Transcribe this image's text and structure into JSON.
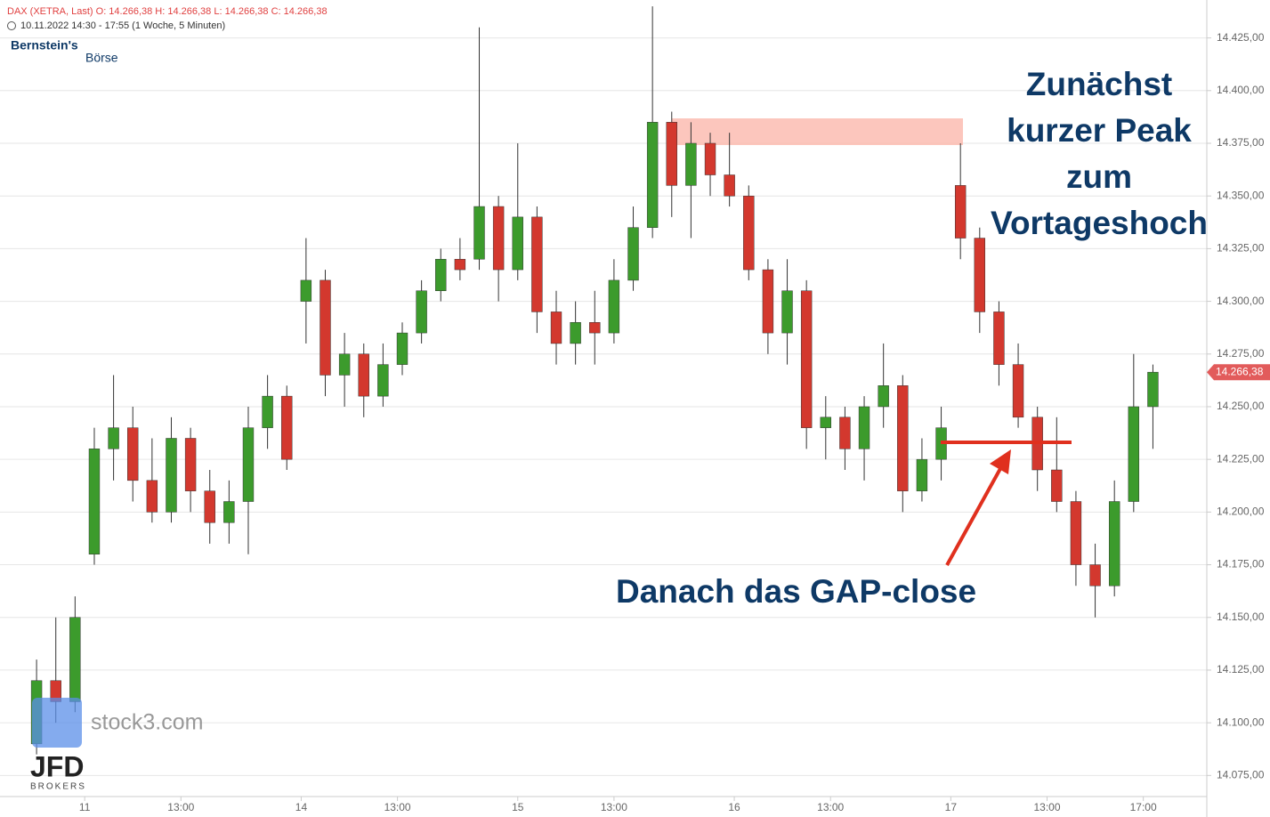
{
  "header": {
    "line1": "DAX (XETRA, Last)  O: 14.266,38  H: 14.266,38  L: 14.266,38  C: 14.266,38",
    "line2": "10.11.2022 14:30 - 17:55  (1 Woche, 5 Minuten)"
  },
  "logos": {
    "brand": "Bernstein's",
    "brand2": "Börse",
    "watermark": "stock3.com",
    "broker": "JFD",
    "broker2": "BROKERS"
  },
  "chart_data": {
    "type": "candlestick",
    "x": [
      -2.5,
      -1.5,
      -0.5,
      0.5,
      1.5,
      2.5,
      3.5,
      4.5,
      5.5,
      6.5,
      7.5,
      8.5,
      9.5,
      10.5,
      11.5,
      12.5,
      13.5,
      14.5,
      15.5,
      16.5,
      17.5,
      18.5,
      19.5,
      20.5,
      21.5,
      22.5,
      23.5,
      24.5,
      25.5,
      26.5,
      27.5,
      28.5,
      29.5,
      30.5,
      31.5,
      32.5,
      33.5,
      34.5,
      35.5,
      36.5,
      37.5,
      38.5,
      39.5,
      40.5,
      41.5,
      42.5,
      43.5,
      44.5,
      45.5,
      46.5,
      47.5,
      48.5,
      49.5,
      50.5,
      51.5,
      52.5,
      53.5,
      54.5,
      55.5
    ],
    "open": [
      14090,
      14120,
      14110,
      14180,
      14230,
      14240,
      14215,
      14200,
      14235,
      14210,
      14195,
      14205,
      14240,
      14255,
      14300,
      14310,
      14265,
      14275,
      14255,
      14270,
      14285,
      14305,
      14320,
      14320,
      14345,
      14315,
      14340,
      14295,
      14280,
      14290,
      14285,
      14310,
      14335,
      14385,
      14355,
      14375,
      14360,
      14350,
      14315,
      14285,
      14305,
      14240,
      14245,
      14230,
      14250,
      14260,
      14210,
      14225,
      14355,
      14330,
      14295,
      14270,
      14245,
      14220,
      14205,
      14175,
      14165,
      14205,
      14250
    ],
    "high": [
      14130,
      14150,
      14160,
      14240,
      14265,
      14250,
      14235,
      14245,
      14240,
      14220,
      14215,
      14250,
      14265,
      14260,
      14330,
      14315,
      14285,
      14280,
      14280,
      14290,
      14310,
      14325,
      14330,
      14430,
      14350,
      14375,
      14345,
      14305,
      14300,
      14305,
      14320,
      14345,
      14440,
      14390,
      14385,
      14380,
      14380,
      14355,
      14320,
      14320,
      14310,
      14255,
      14250,
      14255,
      14280,
      14265,
      14235,
      14250,
      14375,
      14335,
      14300,
      14280,
      14250,
      14245,
      14210,
      14185,
      14215,
      14275,
      14270
    ],
    "low": [
      14085,
      14100,
      14105,
      14175,
      14215,
      14205,
      14195,
      14195,
      14200,
      14185,
      14185,
      14180,
      14230,
      14220,
      14280,
      14255,
      14250,
      14245,
      14250,
      14265,
      14280,
      14300,
      14310,
      14315,
      14300,
      14310,
      14285,
      14270,
      14270,
      14270,
      14280,
      14305,
      14330,
      14340,
      14330,
      14350,
      14345,
      14310,
      14275,
      14270,
      14230,
      14225,
      14220,
      14215,
      14240,
      14200,
      14205,
      14215,
      14320,
      14285,
      14260,
      14240,
      14210,
      14200,
      14165,
      14150,
      14160,
      14200,
      14230
    ],
    "close": [
      14120,
      14110,
      14150,
      14230,
      14240,
      14215,
      14200,
      14235,
      14210,
      14195,
      14205,
      14240,
      14255,
      14225,
      14310,
      14265,
      14275,
      14255,
      14270,
      14285,
      14305,
      14320,
      14315,
      14345,
      14315,
      14340,
      14295,
      14280,
      14290,
      14285,
      14310,
      14335,
      14385,
      14355,
      14375,
      14360,
      14350,
      14315,
      14285,
      14305,
      14240,
      14245,
      14230,
      14250,
      14260,
      14210,
      14225,
      14240,
      14330,
      14295,
      14270,
      14245,
      14220,
      14205,
      14175,
      14165,
      14205,
      14250,
      14266.38
    ],
    "up_color": "#3c9b2c",
    "down_color": "#d3382e",
    "last_price": {
      "value": 14266.38,
      "label": "14.266,38"
    },
    "xlim": [
      -4.4,
      58.3
    ],
    "ylim": [
      14065,
      14443
    ],
    "xticks": [
      {
        "value": 0,
        "label": "11"
      },
      {
        "value": 5,
        "label": "13:00"
      },
      {
        "value": 11.25,
        "label": "14"
      },
      {
        "value": 16.25,
        "label": "13:00"
      },
      {
        "value": 22.5,
        "label": "15"
      },
      {
        "value": 27.5,
        "label": "13:00"
      },
      {
        "value": 33.75,
        "label": "16"
      },
      {
        "value": 38.75,
        "label": "13:00"
      },
      {
        "value": 45,
        "label": "17"
      },
      {
        "value": 50,
        "label": "13:00"
      },
      {
        "value": 55,
        "label": "17:00"
      }
    ],
    "yticks": [
      {
        "value": 14075,
        "label": "14.075,00"
      },
      {
        "value": 14100,
        "label": "14.100,00"
      },
      {
        "value": 14125,
        "label": "14.125,00"
      },
      {
        "value": 14150,
        "label": "14.150,00"
      },
      {
        "value": 14175,
        "label": "14.175,00"
      },
      {
        "value": 14200,
        "label": "14.200,00"
      },
      {
        "value": 14225,
        "label": "14.225,00"
      },
      {
        "value": 14250,
        "label": "14.250,00"
      },
      {
        "value": 14275,
        "label": "14.275,00"
      },
      {
        "value": 14300,
        "label": "14.300,00"
      },
      {
        "value": 14325,
        "label": "14.325,00"
      },
      {
        "value": 14350,
        "label": "14.350,00"
      },
      {
        "value": 14375,
        "label": "14.375,00"
      },
      {
        "value": 14400,
        "label": "14.400,00"
      },
      {
        "value": 14425,
        "label": "14.425,00"
      }
    ],
    "grid": true,
    "annotations": [
      "Zunächst",
      "kurzer Peak",
      "zum",
      "Vortageshoch",
      "Danach das GAP-close"
    ]
  }
}
